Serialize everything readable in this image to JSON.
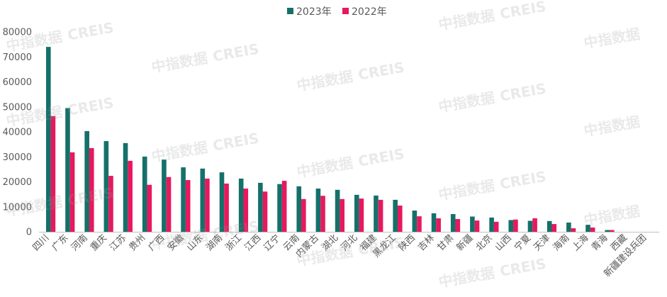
{
  "chart_data": {
    "type": "bar",
    "categories": [
      "四川",
      "广东",
      "河南",
      "重庆",
      "江苏",
      "贵州",
      "广西",
      "安徽",
      "山东",
      "湖南",
      "浙江",
      "江西",
      "辽宁",
      "云南",
      "内蒙古",
      "湖北",
      "河北",
      "福建",
      "黑龙江",
      "陕西",
      "吉林",
      "甘肃",
      "新疆",
      "北京",
      "山西",
      "宁夏",
      "天津",
      "海南",
      "上海",
      "青海",
      "西藏",
      "新疆建设兵团"
    ],
    "series": [
      {
        "name": "2023年",
        "color": "#16706a",
        "values": [
          74000,
          49500,
          40300,
          36300,
          35500,
          30100,
          28900,
          25800,
          25300,
          23800,
          21300,
          19600,
          19100,
          18200,
          17300,
          16800,
          14800,
          14500,
          12800,
          8500,
          7400,
          7100,
          6100,
          5700,
          4700,
          4400,
          4300,
          3700,
          2800,
          700,
          0,
          0
        ]
      },
      {
        "name": "2022年",
        "color": "#e8185e",
        "values": [
          46300,
          31800,
          33500,
          22400,
          28400,
          18800,
          21900,
          20700,
          21300,
          19300,
          17300,
          16100,
          20400,
          13100,
          14400,
          13100,
          13300,
          12800,
          10500,
          6200,
          5400,
          5100,
          4500,
          4000,
          4900,
          5400,
          3100,
          1400,
          1700,
          700,
          0,
          0
        ]
      }
    ],
    "ylim": [
      0,
      80000
    ],
    "yticks": [
      0,
      10000,
      20000,
      30000,
      40000,
      50000,
      60000,
      70000,
      80000
    ],
    "grid": false,
    "legend": "top-center",
    "axis_color": "#bfbfbf"
  },
  "watermark": {
    "cn": "中指数据",
    "en": "CREIS"
  }
}
